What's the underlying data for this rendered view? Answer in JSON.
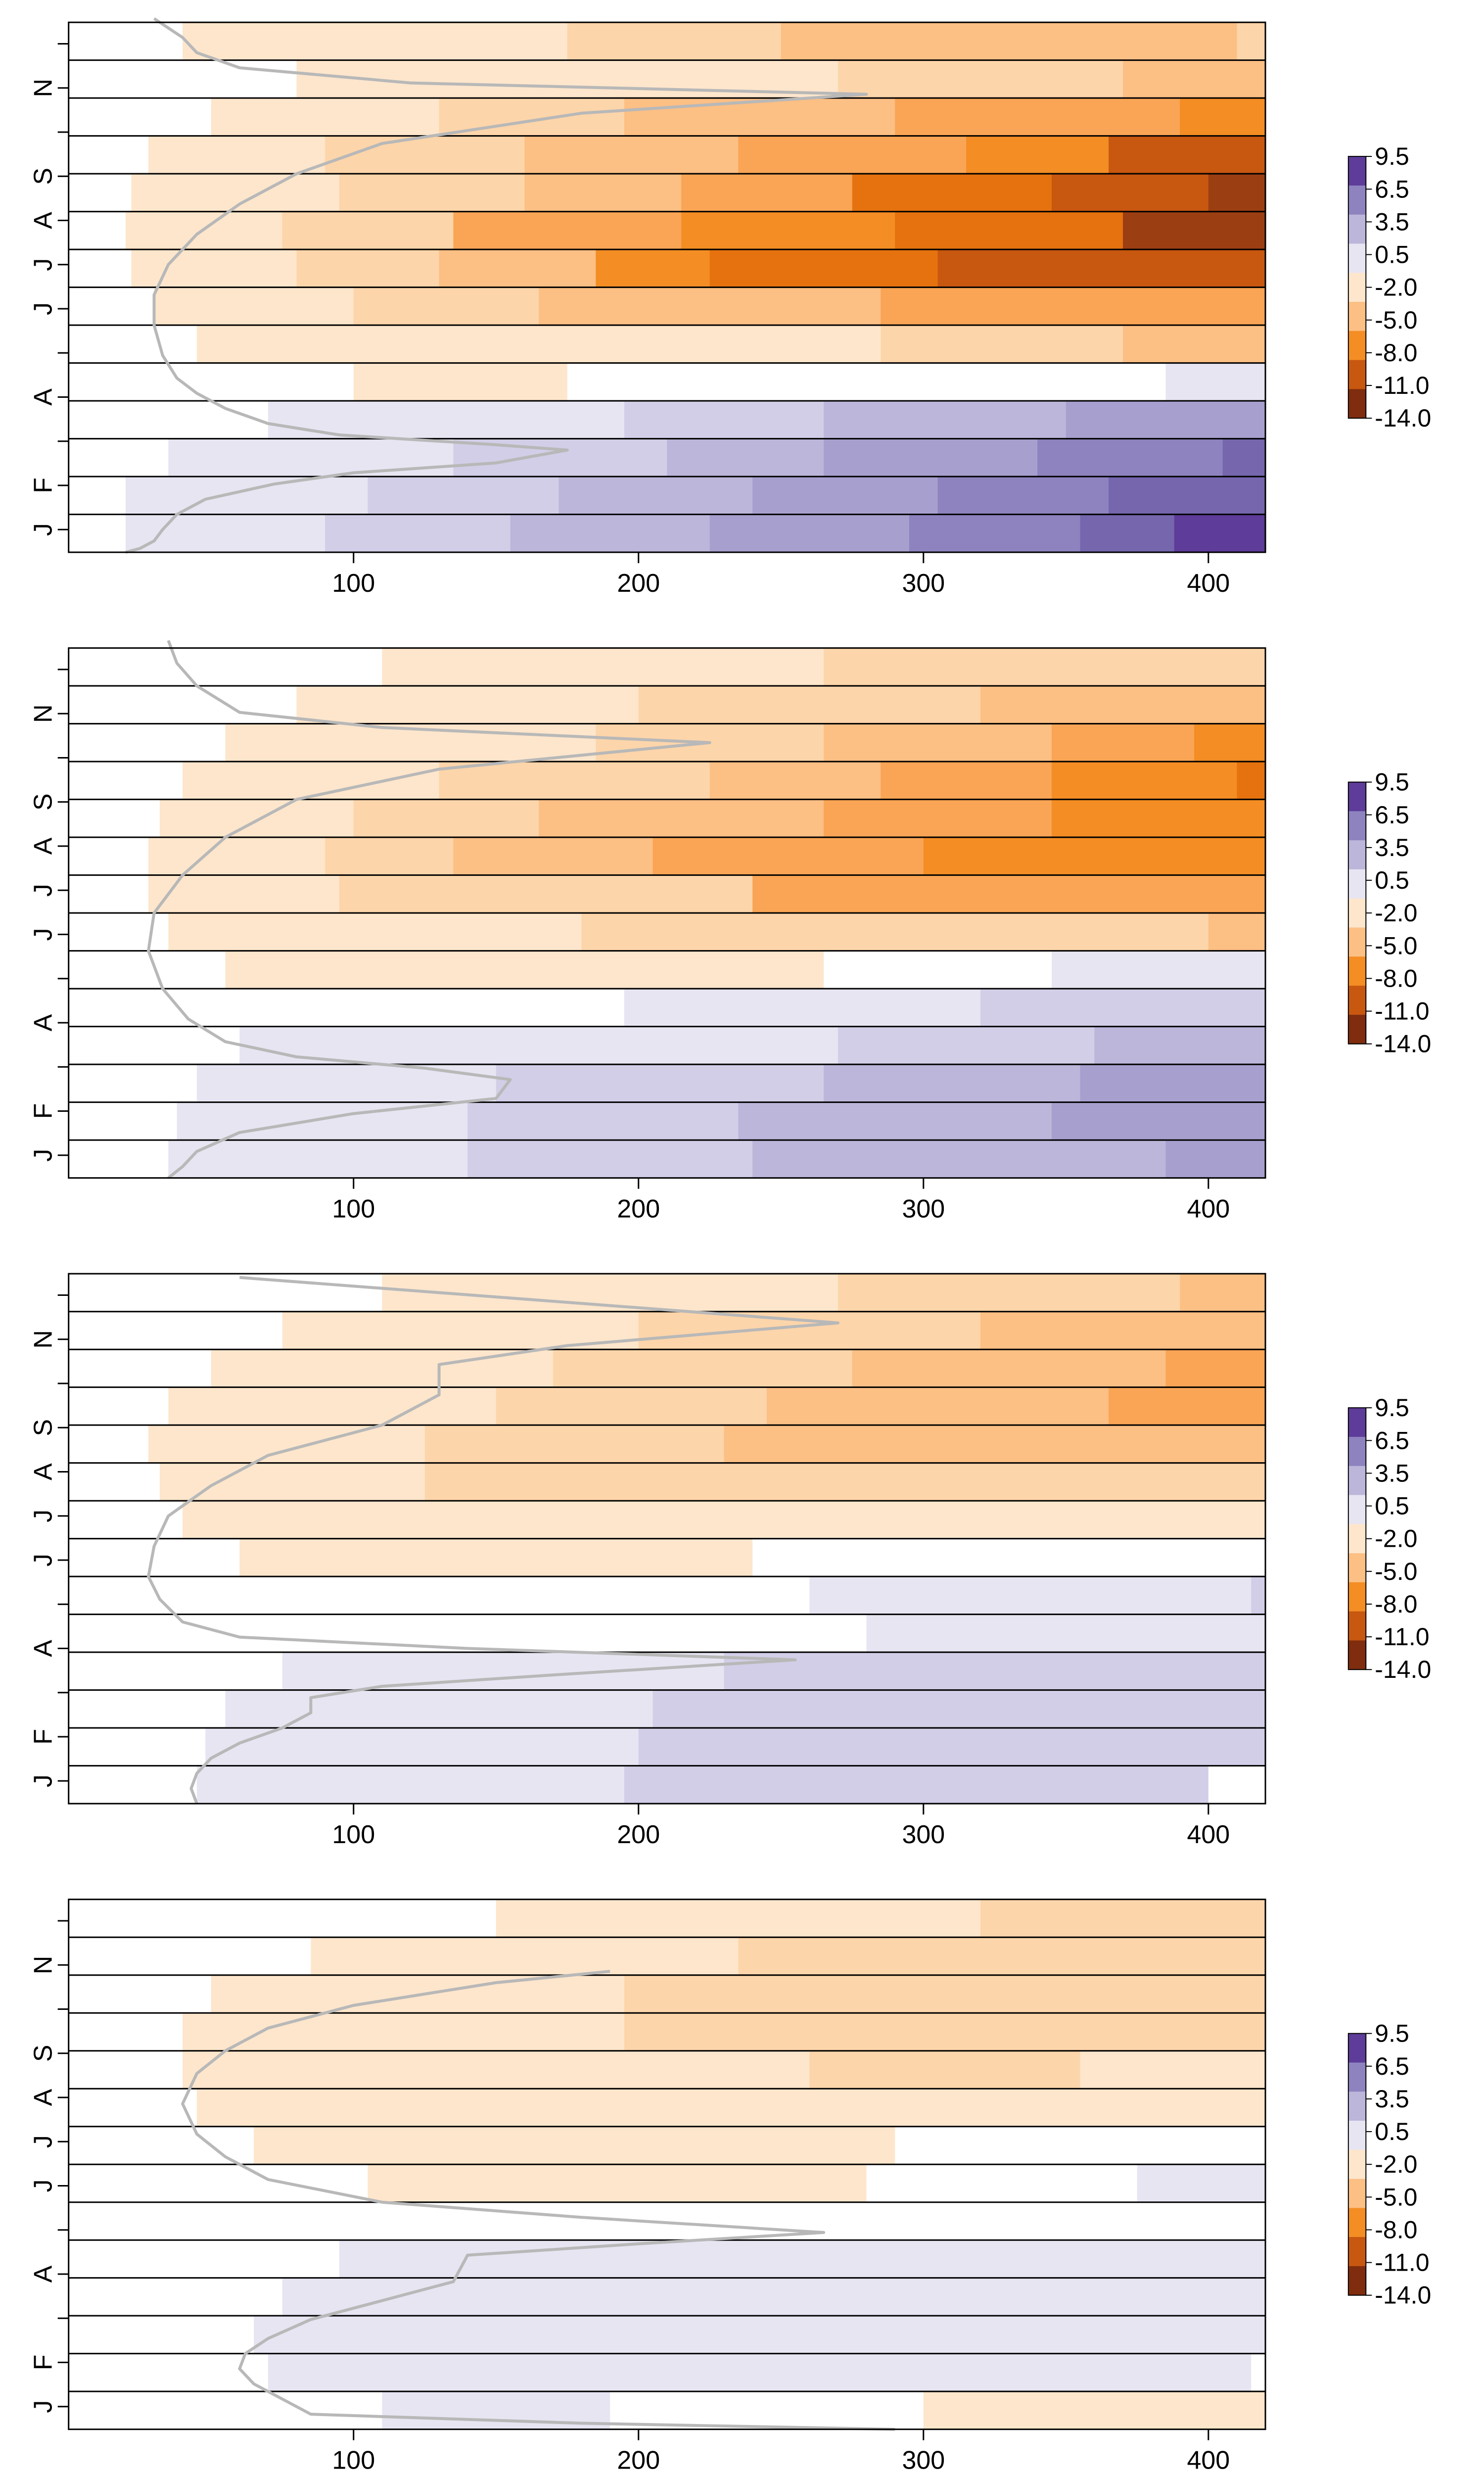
{
  "chart_data": [
    {
      "type": "heatmap",
      "title": "",
      "xlabel": "",
      "ylabel": "",
      "x_ticks": [
        100,
        200,
        300,
        400
      ],
      "xlim": [
        0,
        420
      ],
      "y_ticks": [
        "J",
        "F",
        "",
        "A",
        "",
        "J",
        "J",
        "A",
        "S",
        "",
        "N",
        ""
      ],
      "colorbar_labels": [
        "9.5",
        "6.5",
        "3.5",
        "0.5",
        "-2.0",
        "-5.0",
        "-8.0",
        "-11.0",
        "-14.0"
      ],
      "rows": [
        {
          "b": [
            20,
            90,
            155,
            225,
            295,
            355,
            388,
            420
          ],
          "c": [
            1,
            2,
            3,
            4,
            5,
            6,
            7
          ]
        },
        {
          "b": [
            20,
            105,
            172,
            240,
            305,
            365,
            420
          ],
          "c": [
            1,
            2,
            3,
            4,
            5,
            6
          ]
        },
        {
          "b": [
            35,
            135,
            210,
            265,
            340,
            405,
            420
          ],
          "c": [
            1,
            2,
            3,
            4,
            5,
            6
          ]
        },
        {
          "b": [
            70,
            195,
            265,
            350,
            420
          ],
          "c": [
            1,
            2,
            3,
            4
          ]
        },
        {
          "b": [
            100,
            175,
            232,
            305,
            385,
            420
          ],
          "c": [
            -1,
            0,
            0,
            0,
            1
          ]
        },
        {
          "b": [
            45,
            235,
            285,
            370,
            420
          ],
          "c": [
            -1,
            -1,
            -2,
            -3
          ]
        },
        {
          "b": [
            30,
            100,
            165,
            285,
            420
          ],
          "c": [
            -1,
            -2,
            -3,
            -4
          ]
        },
        {
          "b": [
            22,
            80,
            130,
            185,
            225,
            305,
            420
          ],
          "c": [
            -1,
            -2,
            -3,
            -5,
            -6,
            -7
          ]
        },
        {
          "b": [
            20,
            75,
            135,
            215,
            290,
            370,
            420
          ],
          "c": [
            -1,
            -2,
            -4,
            -5,
            -6,
            -8
          ]
        },
        {
          "b": [
            22,
            95,
            160,
            215,
            275,
            345,
            400,
            420
          ],
          "c": [
            -1,
            -2,
            -3,
            -4,
            -6,
            -7,
            -8
          ]
        },
        {
          "b": [
            28,
            90,
            160,
            235,
            315,
            365,
            420
          ],
          "c": [
            -1,
            -2,
            -3,
            -4,
            -5,
            -7
          ]
        },
        {
          "b": [
            50,
            130,
            195,
            290,
            390,
            420
          ],
          "c": [
            -1,
            -2,
            -3,
            -4,
            -5
          ]
        },
        {
          "b": [
            80,
            205,
            270,
            370,
            420
          ],
          "c": [
            -1,
            -1,
            -2,
            -3
          ]
        },
        {
          "b": [
            40,
            125,
            175,
            250,
            320,
            410,
            420
          ],
          "c": [
            -1,
            -1,
            -2,
            -3,
            -3,
            -2
          ]
        }
      ],
      "line": [
        [
          20,
          0
        ],
        [
          25,
          0.05
        ],
        [
          30,
          0.15
        ],
        [
          33,
          0.3
        ],
        [
          38,
          0.5
        ],
        [
          48,
          0.7
        ],
        [
          72,
          0.9
        ],
        [
          100,
          1.05
        ],
        [
          150,
          1.18
        ],
        [
          175,
          1.35
        ],
        [
          150,
          1.42
        ],
        [
          95,
          1.55
        ],
        [
          70,
          1.7
        ],
        [
          55,
          1.9
        ],
        [
          45,
          2.1
        ],
        [
          38,
          2.3
        ],
        [
          33,
          2.6
        ],
        [
          30,
          3.0
        ],
        [
          30,
          3.4
        ],
        [
          35,
          3.8
        ],
        [
          45,
          4.2
        ],
        [
          60,
          4.6
        ],
        [
          80,
          5.0
        ],
        [
          110,
          5.4
        ],
        [
          180,
          5.8
        ],
        [
          280,
          6.05
        ],
        [
          120,
          6.2
        ],
        [
          60,
          6.4
        ],
        [
          45,
          6.6
        ],
        [
          40,
          6.8
        ],
        [
          30,
          7.05
        ]
      ]
    },
    {
      "type": "heatmap",
      "title": "",
      "xlabel": "",
      "ylabel": "",
      "x_ticks": [
        100,
        200,
        300,
        400
      ],
      "xlim": [
        0,
        420
      ],
      "y_ticks": [
        "J",
        "F",
        "",
        "A",
        "",
        "J",
        "J",
        "A",
        "S",
        "",
        "N",
        ""
      ],
      "colorbar_labels": [
        "9.5",
        "6.5",
        "3.5",
        "0.5",
        "-2.0",
        "-5.0",
        "-8.0",
        "-11.0",
        "-14.0"
      ],
      "rows": [
        {
          "b": [
            35,
            140,
            240,
            385,
            420
          ],
          "c": [
            1,
            2,
            3,
            4
          ]
        },
        {
          "b": [
            38,
            140,
            235,
            345,
            395,
            420
          ],
          "c": [
            1,
            2,
            3,
            4,
            4
          ]
        },
        {
          "b": [
            45,
            150,
            265,
            355,
            420
          ],
          "c": [
            1,
            2,
            3,
            4
          ]
        },
        {
          "b": [
            60,
            215,
            270,
            360,
            420
          ],
          "c": [
            1,
            1,
            2,
            3
          ]
        },
        {
          "b": [
            85,
            195,
            320,
            420
          ],
          "c": [
            0,
            1,
            2
          ]
        },
        {
          "b": [
            55,
            265,
            345,
            420
          ],
          "c": [
            -1,
            0,
            1
          ]
        },
        {
          "b": [
            35,
            105,
            180,
            240,
            400,
            420
          ],
          "c": [
            -1,
            -1,
            -2,
            -2,
            -3
          ]
        },
        {
          "b": [
            28,
            95,
            150,
            240,
            420
          ],
          "c": [
            -1,
            -2,
            -2,
            -4
          ]
        },
        {
          "b": [
            28,
            90,
            135,
            205,
            300,
            420
          ],
          "c": [
            -1,
            -2,
            -3,
            -4,
            -5
          ]
        },
        {
          "b": [
            32,
            100,
            165,
            265,
            345,
            420
          ],
          "c": [
            -1,
            -2,
            -3,
            -4,
            -5
          ]
        },
        {
          "b": [
            40,
            130,
            225,
            285,
            345,
            410,
            420
          ],
          "c": [
            -1,
            -2,
            -3,
            -4,
            -5,
            -6
          ]
        },
        {
          "b": [
            55,
            185,
            265,
            345,
            395,
            420
          ],
          "c": [
            -1,
            -2,
            -3,
            -4,
            -5
          ]
        },
        {
          "b": [
            80,
            200,
            320,
            400,
            420
          ],
          "c": [
            -1,
            -2,
            -3,
            -3
          ]
        },
        {
          "b": [
            110,
            265,
            390,
            420
          ],
          "c": [
            -1,
            -2,
            -2
          ]
        }
      ],
      "line": [
        [
          35,
          0
        ],
        [
          40,
          0.15
        ],
        [
          45,
          0.35
        ],
        [
          60,
          0.6
        ],
        [
          100,
          0.85
        ],
        [
          150,
          1.05
        ],
        [
          155,
          1.3
        ],
        [
          125,
          1.45
        ],
        [
          80,
          1.6
        ],
        [
          55,
          1.8
        ],
        [
          42,
          2.1
        ],
        [
          33,
          2.5
        ],
        [
          28,
          3.0
        ],
        [
          30,
          3.5
        ],
        [
          40,
          4.0
        ],
        [
          55,
          4.5
        ],
        [
          80,
          5.0
        ],
        [
          130,
          5.4
        ],
        [
          225,
          5.75
        ],
        [
          110,
          5.95
        ],
        [
          60,
          6.15
        ],
        [
          45,
          6.5
        ],
        [
          38,
          6.8
        ],
        [
          35,
          7.1
        ]
      ]
    },
    {
      "type": "heatmap",
      "title": "",
      "xlabel": "",
      "ylabel": "",
      "x_ticks": [
        100,
        200,
        300,
        400
      ],
      "xlim": [
        0,
        420
      ],
      "y_ticks": [
        "J",
        "F",
        "",
        "A",
        "",
        "J",
        "J",
        "A",
        "S",
        "",
        "N",
        ""
      ],
      "colorbar_labels": [
        "9.5",
        "6.5",
        "3.5",
        "0.5",
        "-2.0",
        "-5.0",
        "-8.0",
        "-11.0",
        "-14.0"
      ],
      "rows": [
        {
          "b": [
            45,
            195,
            400,
            420
          ],
          "c": [
            1,
            2,
            0
          ]
        },
        {
          "b": [
            48,
            200,
            420
          ],
          "c": [
            1,
            2
          ]
        },
        {
          "b": [
            55,
            205,
            420
          ],
          "c": [
            1,
            2
          ]
        },
        {
          "b": [
            75,
            230,
            420
          ],
          "c": [
            1,
            2
          ]
        },
        {
          "b": [
            85,
            280,
            420
          ],
          "c": [
            0,
            1,
            2
          ]
        },
        {
          "b": [
            130,
            260,
            415,
            420
          ],
          "c": [
            0,
            1,
            2
          ]
        },
        {
          "b": [
            60,
            240,
            355,
            420
          ],
          "c": [
            -1,
            0,
            0
          ]
        },
        {
          "b": [
            40,
            215,
            255,
            420
          ],
          "c": [
            -1,
            -1,
            -1
          ]
        },
        {
          "b": [
            32,
            125,
            240,
            420
          ],
          "c": [
            -1,
            -2,
            -2
          ]
        },
        {
          "b": [
            28,
            125,
            230,
            420
          ],
          "c": [
            -1,
            -2,
            -3
          ]
        },
        {
          "b": [
            35,
            150,
            245,
            365,
            420
          ],
          "c": [
            -1,
            -2,
            -3,
            -4
          ]
        },
        {
          "b": [
            50,
            170,
            275,
            385,
            420
          ],
          "c": [
            -1,
            -2,
            -3,
            -4
          ]
        },
        {
          "b": [
            75,
            200,
            320,
            420
          ],
          "c": [
            -1,
            -2,
            -3
          ]
        },
        {
          "b": [
            110,
            270,
            390,
            420
          ],
          "c": [
            -1,
            -2,
            -3
          ]
        }
      ],
      "line": [
        [
          45,
          0
        ],
        [
          43,
          0.2
        ],
        [
          45,
          0.4
        ],
        [
          50,
          0.6
        ],
        [
          60,
          0.8
        ],
        [
          75,
          1.0
        ],
        [
          85,
          1.2
        ],
        [
          85,
          1.4
        ],
        [
          110,
          1.55
        ],
        [
          170,
          1.7
        ],
        [
          255,
          1.9
        ],
        [
          140,
          2.05
        ],
        [
          60,
          2.2
        ],
        [
          40,
          2.4
        ],
        [
          32,
          2.7
        ],
        [
          28,
          3.0
        ],
        [
          30,
          3.4
        ],
        [
          35,
          3.8
        ],
        [
          50,
          4.2
        ],
        [
          70,
          4.6
        ],
        [
          110,
          5.0
        ],
        [
          130,
          5.4
        ],
        [
          130,
          5.8
        ],
        [
          175,
          6.05
        ],
        [
          270,
          6.35
        ],
        [
          60,
          6.95
        ]
      ]
    },
    {
      "type": "heatmap",
      "title": "",
      "xlabel": "",
      "ylabel": "",
      "x_ticks": [
        100,
        200,
        300,
        400
      ],
      "xlim": [
        0,
        420
      ],
      "y_ticks": [
        "J",
        "F",
        "",
        "A",
        "",
        "J",
        "J",
        "A",
        "S",
        "",
        "N",
        ""
      ],
      "colorbar_labels": [
        "9.5",
        "6.5",
        "3.5",
        "0.5",
        "-2.0",
        "-5.0",
        "-8.0",
        "-11.0",
        "-14.0"
      ],
      "rows": [
        {
          "b": [
            75,
            110,
            190,
            300,
            380,
            420
          ],
          "c": [
            0,
            1,
            0,
            -1,
            -1
          ]
        },
        {
          "b": [
            70,
            315,
            415,
            420
          ],
          "c": [
            1,
            1,
            0
          ]
        },
        {
          "b": [
            65,
            420
          ],
          "c": [
            1
          ]
        },
        {
          "b": [
            75,
            420
          ],
          "c": [
            1
          ]
        },
        {
          "b": [
            95,
            420
          ],
          "c": [
            1
          ]
        },
        {
          "b": [
            145,
            420
          ],
          "c": [
            0,
            1
          ]
        },
        {
          "b": [
            105,
            280,
            375,
            420
          ],
          "c": [
            -1,
            0,
            1
          ]
        },
        {
          "b": [
            65,
            290,
            420
          ],
          "c": [
            -1,
            0
          ]
        },
        {
          "b": [
            45,
            420
          ],
          "c": [
            -1
          ]
        },
        {
          "b": [
            40,
            260,
            355,
            420
          ],
          "c": [
            -1,
            -2,
            -1
          ]
        },
        {
          "b": [
            40,
            195,
            420
          ],
          "c": [
            -1,
            -2
          ]
        },
        {
          "b": [
            50,
            195,
            420
          ],
          "c": [
            -1,
            -2
          ]
        },
        {
          "b": [
            85,
            235,
            420
          ],
          "c": [
            -1,
            -2
          ]
        },
        {
          "b": [
            150,
            320,
            420
          ],
          "c": [
            -1,
            -2
          ]
        }
      ],
      "line": [
        [
          290,
          0
        ],
        [
          180,
          0.08
        ],
        [
          85,
          0.2
        ],
        [
          75,
          0.4
        ],
        [
          65,
          0.6
        ],
        [
          60,
          0.8
        ],
        [
          62,
          1.0
        ],
        [
          70,
          1.2
        ],
        [
          85,
          1.45
        ],
        [
          110,
          1.7
        ],
        [
          135,
          1.95
        ],
        [
          140,
          2.3
        ],
        [
          200,
          2.45
        ],
        [
          265,
          2.6
        ],
        [
          180,
          2.8
        ],
        [
          110,
          3.0
        ],
        [
          70,
          3.3
        ],
        [
          55,
          3.6
        ],
        [
          45,
          3.9
        ],
        [
          40,
          4.3
        ],
        [
          45,
          4.7
        ],
        [
          55,
          5.0
        ],
        [
          70,
          5.3
        ],
        [
          100,
          5.6
        ],
        [
          150,
          5.9
        ],
        [
          190,
          6.05
        ]
      ]
    }
  ]
}
